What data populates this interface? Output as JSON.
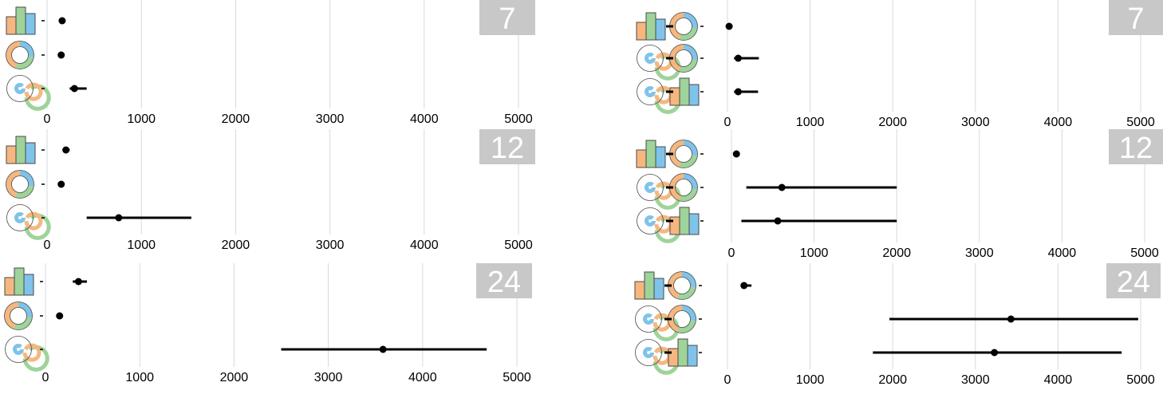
{
  "chart_data": [
    {
      "type": "scatter",
      "panel": "left-top",
      "badge": "7",
      "xlim": [
        0,
        5000
      ],
      "xticks": [
        "0",
        "1000",
        "2000",
        "3000",
        "4000",
        "5000"
      ],
      "grid": true,
      "rows": [
        {
          "icons": [
            "bar-chart-icon"
          ],
          "mean": 160,
          "low": 160,
          "high": 160
        },
        {
          "icons": [
            "donut-chart-icon"
          ],
          "mean": 150,
          "low": 150,
          "high": 150
        },
        {
          "icons": [
            "radial-bar-icon"
          ],
          "mean": 290,
          "low": 240,
          "high": 420
        }
      ]
    },
    {
      "type": "scatter",
      "panel": "left-middle",
      "badge": "12",
      "xlim": [
        0,
        5000
      ],
      "xticks": [
        "0",
        "1000",
        "2000",
        "3000",
        "4000",
        "5000"
      ],
      "grid": true,
      "rows": [
        {
          "icons": [
            "bar-chart-icon"
          ],
          "mean": 200,
          "low": 170,
          "high": 240
        },
        {
          "icons": [
            "donut-chart-icon"
          ],
          "mean": 150,
          "low": 150,
          "high": 150
        },
        {
          "icons": [
            "radial-bar-icon"
          ],
          "mean": 760,
          "low": 420,
          "high": 1530
        }
      ]
    },
    {
      "type": "scatter",
      "panel": "left-bottom",
      "badge": "24",
      "xlim": [
        0,
        5000
      ],
      "xticks": [
        "0",
        "1000",
        "2000",
        "3000",
        "4000",
        "5000"
      ],
      "grid": true,
      "rows": [
        {
          "icons": [
            "bar-chart-icon"
          ],
          "mean": 350,
          "low": 290,
          "high": 440
        },
        {
          "icons": [
            "donut-chart-icon"
          ],
          "mean": 150,
          "low": 150,
          "high": 150
        },
        {
          "icons": [
            "radial-bar-icon"
          ],
          "mean": 3580,
          "low": 2500,
          "high": 4680
        }
      ]
    },
    {
      "type": "scatter",
      "panel": "right-top",
      "badge": "7",
      "xlim": [
        0,
        5000
      ],
      "xticks": [
        "0",
        "1000",
        "2000",
        "3000",
        "4000",
        "5000"
      ],
      "grid": true,
      "rows": [
        {
          "icons": [
            "bar-chart-icon",
            "donut-chart-icon"
          ],
          "mean": 20,
          "low": 20,
          "high": 20
        },
        {
          "icons": [
            "radial-bar-icon",
            "donut-chart-icon"
          ],
          "mean": 130,
          "low": 80,
          "high": 380
        },
        {
          "icons": [
            "radial-bar-icon",
            "bar-chart-icon"
          ],
          "mean": 130,
          "low": 80,
          "high": 370
        }
      ]
    },
    {
      "type": "scatter",
      "panel": "right-middle",
      "badge": "12",
      "xlim": [
        0,
        5000
      ],
      "xticks": [
        "0",
        "1000",
        "2000",
        "3000",
        "4000",
        "5000"
      ],
      "grid": true,
      "rows": [
        {
          "icons": [
            "bar-chart-icon",
            "donut-chart-icon"
          ],
          "mean": 60,
          "low": 40,
          "high": 90
        },
        {
          "icons": [
            "radial-bar-icon",
            "donut-chart-icon"
          ],
          "mean": 610,
          "low": 180,
          "high": 2000
        },
        {
          "icons": [
            "radial-bar-icon",
            "bar-chart-icon"
          ],
          "mean": 560,
          "low": 120,
          "high": 2000
        }
      ]
    },
    {
      "type": "scatter",
      "panel": "right-bottom",
      "badge": "24",
      "xlim": [
        0,
        5000
      ],
      "xticks": [
        "0",
        "1000",
        "2000",
        "3000",
        "4000",
        "5000"
      ],
      "grid": true,
      "rows": [
        {
          "icons": [
            "bar-chart-icon",
            "donut-chart-icon"
          ],
          "mean": 200,
          "low": 160,
          "high": 290
        },
        {
          "icons": [
            "radial-bar-icon",
            "donut-chart-icon"
          ],
          "mean": 3430,
          "low": 1960,
          "high": 4970
        },
        {
          "icons": [
            "radial-bar-icon",
            "bar-chart-icon"
          ],
          "mean": 3230,
          "low": 1760,
          "high": 4770
        }
      ]
    }
  ],
  "colors": {
    "orange": "#f5b77f",
    "green": "#9ed39a",
    "blue": "#7fc3ea",
    "badge": "#c8c8c8",
    "grid": "#d9d9d9",
    "marker": "#000000",
    "icon_outline": "#4a4a4a"
  }
}
